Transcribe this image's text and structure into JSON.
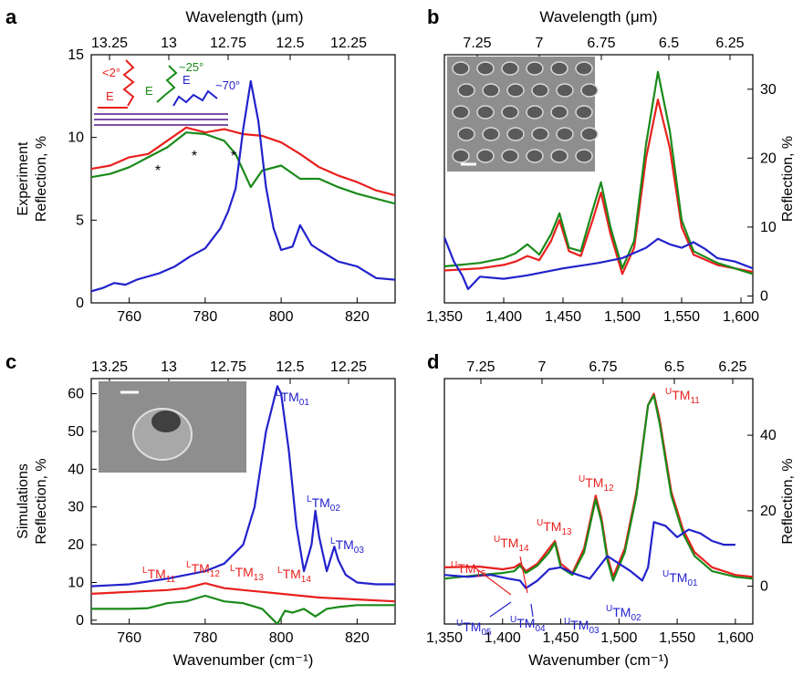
{
  "figure": {
    "top_axis_label": "Wavelength (μm)",
    "bottom_axis_label": "Wavenumber (cm⁻¹)"
  },
  "colors": {
    "red": "#e8201e",
    "green": "#1a8a1a",
    "blue": "#2222cc",
    "inset_bg": "#8e8e8e"
  },
  "chart_data": [
    {
      "panel": "a",
      "type": "line",
      "xlim": [
        750,
        830
      ],
      "ylim": [
        0,
        15
      ],
      "x_ticks": [
        760,
        780,
        800,
        820
      ],
      "y_ticks": [
        0,
        5,
        10,
        15
      ],
      "top_ticks": [
        "13.25",
        "13",
        "12.75",
        "12.5",
        "12.25"
      ],
      "ylabel_lines": [
        "Experiment",
        "Reflection, %"
      ],
      "inset_labels": {
        "red": "<2°",
        "green": "~25°",
        "blue": "~70°",
        "field": "E"
      },
      "annotations": [
        "*",
        "*",
        "*"
      ],
      "series": [
        {
          "color": "red",
          "x": [
            750,
            755,
            760,
            765,
            770,
            775,
            780,
            785,
            790,
            795,
            800,
            805,
            810,
            815,
            820,
            825,
            830
          ],
          "y": [
            8.1,
            8.3,
            8.8,
            9.0,
            9.8,
            10.6,
            10.3,
            10.5,
            10.2,
            10.1,
            9.7,
            9.0,
            8.2,
            7.7,
            7.3,
            6.8,
            6.5
          ]
        },
        {
          "color": "green",
          "x": [
            750,
            755,
            760,
            765,
            770,
            775,
            780,
            785,
            788,
            792,
            795,
            800,
            805,
            810,
            815,
            820,
            825,
            830
          ],
          "y": [
            7.6,
            7.8,
            8.2,
            8.8,
            9.4,
            10.3,
            10.2,
            9.8,
            9.0,
            7.0,
            8.0,
            8.3,
            7.5,
            7.5,
            7.0,
            6.6,
            6.3,
            6.0
          ]
        },
        {
          "color": "blue",
          "x": [
            750,
            753,
            756,
            759,
            762,
            765,
            768,
            772,
            776,
            780,
            784,
            786,
            788,
            790,
            792,
            794,
            796,
            798,
            800,
            803,
            805,
            808,
            810,
            815,
            820,
            825,
            830
          ],
          "y": [
            0.7,
            0.9,
            1.2,
            1.1,
            1.4,
            1.6,
            1.8,
            2.2,
            2.8,
            3.3,
            4.5,
            5.5,
            6.9,
            10.5,
            13.4,
            11.0,
            7.0,
            4.5,
            3.2,
            3.4,
            4.7,
            3.5,
            3.2,
            2.5,
            2.2,
            1.5,
            1.4
          ]
        }
      ]
    },
    {
      "panel": "b",
      "type": "line",
      "xlim": [
        1350,
        1610
      ],
      "ylim": [
        -1,
        35
      ],
      "x_ticks": [
        "1,350",
        "1,400",
        "1,450",
        "1,500",
        "1,550",
        "1,600"
      ],
      "y_ticks": [
        0,
        10,
        20,
        30
      ],
      "top_ticks": [
        "7.25",
        "7",
        "6.75",
        "6.5",
        "6.25"
      ],
      "ylabel": "Reflection, %",
      "series": [
        {
          "color": "red",
          "x": [
            1350,
            1380,
            1400,
            1410,
            1420,
            1430,
            1440,
            1447,
            1455,
            1465,
            1475,
            1482,
            1490,
            1500,
            1510,
            1520,
            1530,
            1540,
            1550,
            1560,
            1580,
            1610
          ],
          "y": [
            3.7,
            4.0,
            4.5,
            5.0,
            5.8,
            5.2,
            8.0,
            11.0,
            6.5,
            5.8,
            11.0,
            15.0,
            9.0,
            3.2,
            7.0,
            20.0,
            28.5,
            21.5,
            10.0,
            6.0,
            4.5,
            3.5
          ]
        },
        {
          "color": "green",
          "x": [
            1350,
            1380,
            1400,
            1410,
            1420,
            1430,
            1440,
            1447,
            1455,
            1465,
            1475,
            1482,
            1490,
            1500,
            1510,
            1520,
            1530,
            1540,
            1550,
            1560,
            1580,
            1610
          ],
          "y": [
            4.3,
            4.8,
            5.5,
            6.2,
            7.5,
            6.0,
            9.0,
            12.0,
            7.0,
            6.5,
            12.5,
            16.5,
            10.0,
            4.0,
            8.0,
            22.0,
            32.5,
            24.0,
            11.0,
            6.5,
            4.8,
            3.2
          ]
        },
        {
          "color": "blue",
          "x": [
            1350,
            1358,
            1365,
            1370,
            1380,
            1400,
            1420,
            1450,
            1480,
            1500,
            1520,
            1530,
            1540,
            1550,
            1560,
            1570,
            1580,
            1595,
            1610
          ],
          "y": [
            8.5,
            5.0,
            3.0,
            1.0,
            2.8,
            2.5,
            3.0,
            4.0,
            4.8,
            5.5,
            7.0,
            8.3,
            7.5,
            7.0,
            7.8,
            6.8,
            5.5,
            5.0,
            4.0
          ]
        }
      ]
    },
    {
      "panel": "c",
      "type": "line",
      "xlim": [
        750,
        830
      ],
      "ylim": [
        -1,
        64
      ],
      "x_ticks": [
        760,
        780,
        800,
        820
      ],
      "y_ticks": [
        0,
        10,
        20,
        30,
        40,
        50,
        60
      ],
      "top_ticks": [
        "13.25",
        "13",
        "12.75",
        "12.5",
        "12.25"
      ],
      "ylabel_lines": [
        "Simulations",
        "Reflection, %"
      ],
      "xlabel": "Wavenumber (cm⁻¹)",
      "mode_labels_blue": [
        [
          "L",
          "TM",
          "01"
        ],
        [
          "L",
          "TM",
          "02"
        ],
        [
          "L",
          "TM",
          "03"
        ]
      ],
      "mode_labels_red": [
        [
          "L",
          "TM",
          "11"
        ],
        [
          "L",
          "TM",
          "12"
        ],
        [
          "L",
          "TM",
          "13"
        ],
        [
          "L",
          "TM",
          "14"
        ]
      ],
      "series": [
        {
          "color": "red",
          "x": [
            750,
            760,
            770,
            775,
            780,
            785,
            790,
            795,
            800,
            810,
            820,
            830
          ],
          "y": [
            7.0,
            7.5,
            8.0,
            8.5,
            9.8,
            8.5,
            8.0,
            7.5,
            7.0,
            6.0,
            5.5,
            5.0
          ]
        },
        {
          "color": "green",
          "x": [
            750,
            760,
            765,
            770,
            775,
            780,
            785,
            790,
            795,
            797,
            799,
            801,
            803,
            806,
            809,
            812,
            815,
            820,
            825,
            830
          ],
          "y": [
            3.0,
            3.0,
            3.2,
            4.5,
            5.0,
            6.5,
            5.0,
            4.5,
            3.0,
            1.0,
            -1.0,
            2.5,
            2.0,
            3.0,
            1.0,
            3.0,
            3.5,
            4.0,
            4.0,
            4.0
          ]
        },
        {
          "color": "blue",
          "x": [
            750,
            760,
            770,
            780,
            785,
            790,
            793,
            796,
            799,
            800,
            802,
            804,
            806,
            808,
            809,
            810,
            812,
            814,
            815,
            817,
            820,
            825,
            830
          ],
          "y": [
            9.0,
            9.5,
            11.0,
            13.0,
            15.0,
            20.0,
            30.0,
            50.0,
            62.0,
            60.0,
            45.0,
            25.0,
            13.0,
            20.0,
            29.0,
            22.0,
            13.0,
            19.5,
            16.0,
            12.0,
            10.0,
            9.5,
            9.5
          ]
        }
      ]
    },
    {
      "panel": "d",
      "type": "line",
      "xlim": [
        1350,
        1615
      ],
      "ylim": [
        -10,
        55
      ],
      "x_ticks": [
        "1,350",
        "1,400",
        "1,450",
        "1,500",
        "1,550",
        "1,600"
      ],
      "y_ticks": [
        0,
        20,
        40
      ],
      "top_ticks": [
        "7.25",
        "7",
        "6.75",
        "6.5",
        "6.25"
      ],
      "ylabel": "Reflection, %",
      "xlabel": "Wavenumber (cm⁻¹)",
      "mode_labels_red": [
        [
          "U",
          "TM",
          "11"
        ],
        [
          "U",
          "TM",
          "12"
        ],
        [
          "U",
          "TM",
          "13"
        ],
        [
          "U",
          "TM",
          "14"
        ],
        [
          "U",
          "TM",
          "15"
        ]
      ],
      "mode_labels_blue": [
        [
          "U",
          "TM",
          "01"
        ],
        [
          "U",
          "TM",
          "02"
        ],
        [
          "U",
          "TM",
          "03"
        ],
        [
          "U",
          "TM",
          "04"
        ],
        [
          "U",
          "TM",
          "05"
        ]
      ],
      "series": [
        {
          "color": "red",
          "x": [
            1350,
            1380,
            1400,
            1410,
            1415,
            1420,
            1430,
            1440,
            1445,
            1450,
            1460,
            1470,
            1480,
            1485,
            1490,
            1495,
            1505,
            1515,
            1525,
            1530,
            1535,
            1545,
            1555,
            1565,
            1580,
            1600,
            1615
          ],
          "y": [
            5.0,
            5.2,
            4.5,
            5.0,
            6.0,
            4.0,
            6.0,
            10.0,
            12.0,
            6.0,
            3.5,
            10.0,
            24.0,
            18.0,
            8.0,
            2.5,
            10.0,
            25.0,
            48.0,
            51.0,
            44.0,
            25.0,
            15.0,
            9.0,
            5.0,
            3.0,
            2.5
          ]
        },
        {
          "color": "green",
          "x": [
            1350,
            1380,
            1400,
            1410,
            1415,
            1420,
            1430,
            1440,
            1445,
            1450,
            1460,
            1470,
            1480,
            1485,
            1490,
            1495,
            1505,
            1515,
            1525,
            1530,
            1535,
            1545,
            1555,
            1565,
            1580,
            1600,
            1615
          ],
          "y": [
            2.0,
            3.0,
            3.5,
            4.0,
            5.5,
            3.5,
            5.5,
            9.0,
            11.5,
            5.0,
            3.0,
            9.0,
            23.0,
            17.0,
            7.0,
            1.5,
            9.0,
            24.0,
            48.0,
            50.5,
            43.0,
            24.0,
            14.0,
            8.0,
            4.0,
            2.5,
            2.0
          ]
        },
        {
          "color": "blue",
          "x": [
            1350,
            1370,
            1390,
            1405,
            1415,
            1420,
            1430,
            1440,
            1450,
            1460,
            1475,
            1490,
            1500,
            1510,
            1520,
            1525,
            1530,
            1540,
            1550,
            1560,
            1570,
            1580,
            1590,
            1600
          ],
          "y": [
            3.0,
            2.5,
            3.0,
            2.0,
            1.5,
            -0.5,
            1.5,
            4.5,
            5.0,
            3.5,
            2.0,
            8.0,
            6.0,
            4.0,
            1.5,
            5.0,
            17.0,
            16.0,
            13.0,
            15.0,
            14.0,
            12.0,
            11.0,
            11.0
          ]
        }
      ]
    }
  ]
}
